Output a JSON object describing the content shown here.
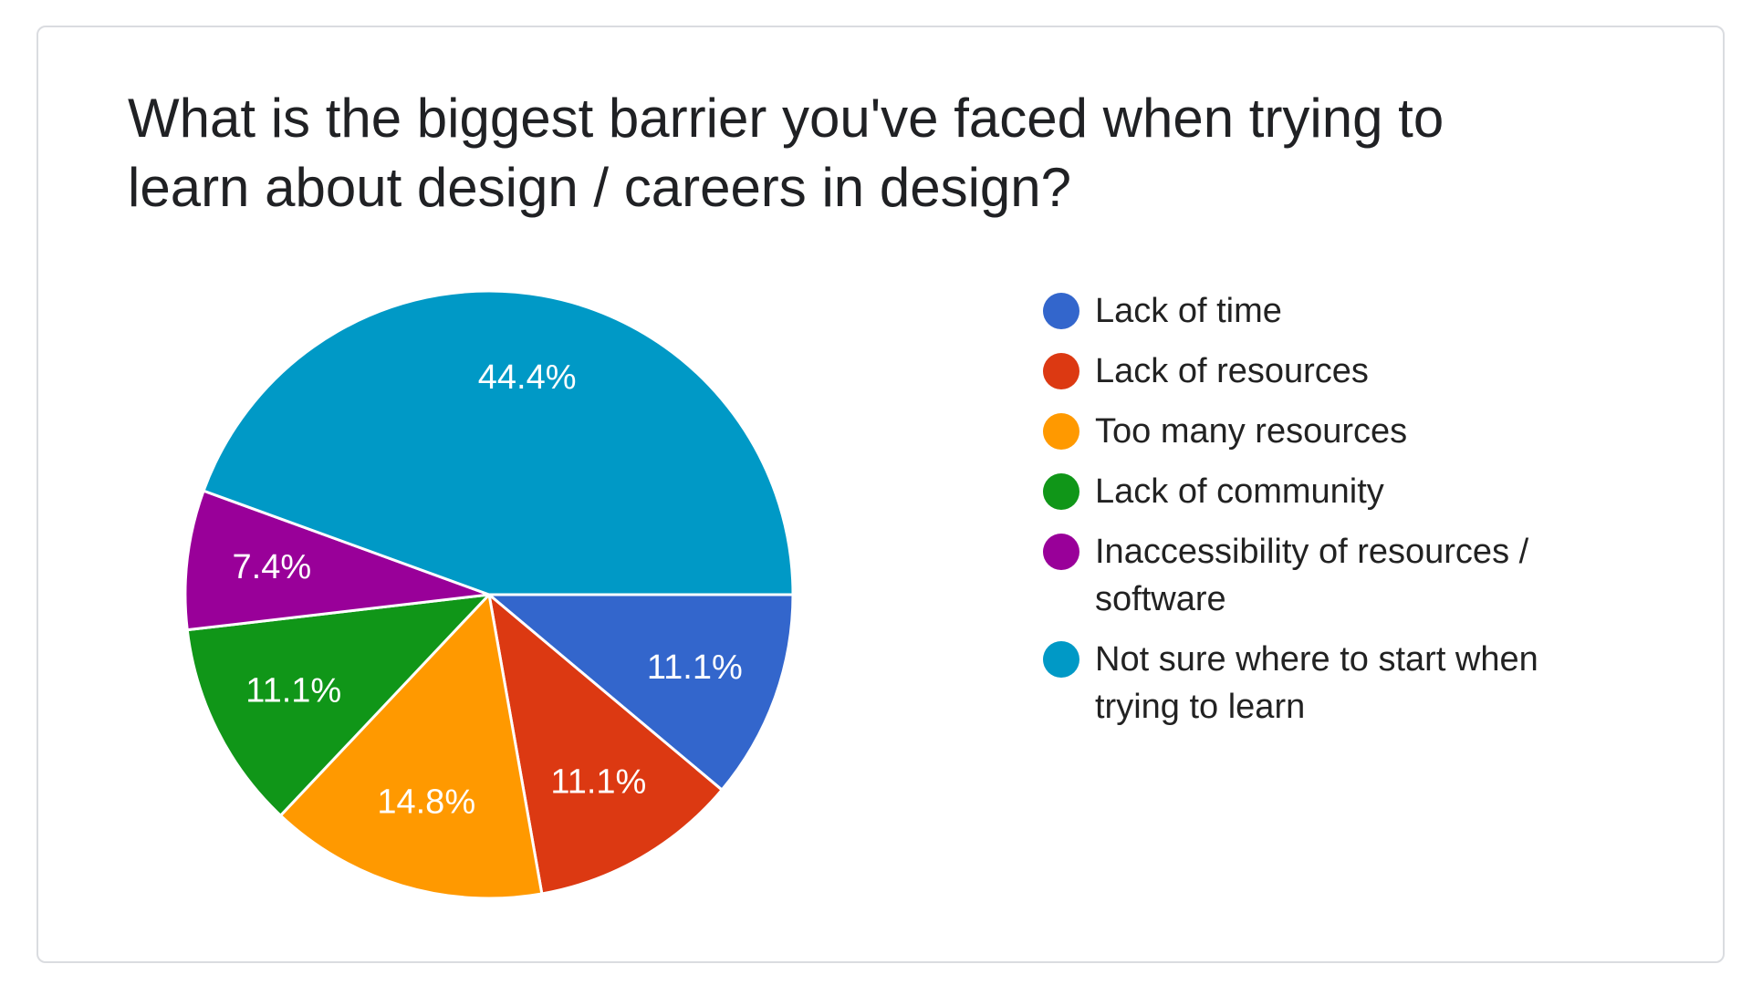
{
  "chart_data": {
    "type": "pie",
    "title": "What is the biggest barrier you've faced when trying to learn about design / careers in design?",
    "slices": [
      {
        "label": "Lack of time",
        "value": 11.1,
        "value_label": "11.1%",
        "color": "#3366cc"
      },
      {
        "label": "Lack of resources",
        "value": 11.1,
        "value_label": "11.1%",
        "color": "#dc3912"
      },
      {
        "label": "Too many resources",
        "value": 14.8,
        "value_label": "14.8%",
        "color": "#ff9900"
      },
      {
        "label": "Lack of community",
        "value": 11.1,
        "value_label": "11.1%",
        "color": "#109618"
      },
      {
        "label": "Inaccessibility of resources / software",
        "value": 7.4,
        "value_label": "7.4%",
        "color": "#990099"
      },
      {
        "label": "Not sure where to start when trying to learn",
        "value": 44.4,
        "value_label": "44.4%",
        "color": "#0099c6"
      }
    ],
    "legend_position": "right"
  }
}
